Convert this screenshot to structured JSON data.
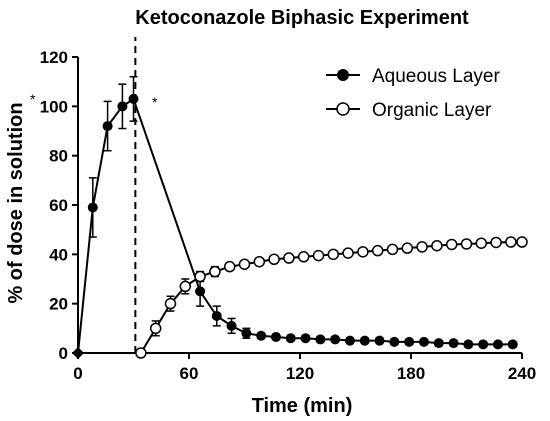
{
  "chart_data": {
    "type": "line",
    "title": "Ketoconazole Biphasic Experiment",
    "xlabel": "Time (min)",
    "ylabel": "% of dose in solution",
    "xlim": [
      0,
      240
    ],
    "ylim": [
      0,
      120
    ],
    "x_ticks": [
      0,
      60,
      120,
      180,
      240
    ],
    "y_ticks": [
      0,
      20,
      40,
      60,
      80,
      100,
      120
    ],
    "grid": false,
    "legend_position": "top-right",
    "vertical_marker_x": 31,
    "annotations": [
      "*",
      "*"
    ],
    "series": [
      {
        "name": "Aqueous Layer",
        "marker": "filled-circle",
        "color": "#000000",
        "x": [
          0,
          8,
          16,
          24,
          30,
          66,
          75,
          83,
          91,
          99,
          107,
          115,
          123,
          131,
          139,
          147,
          155,
          163,
          171,
          179,
          187,
          195,
          203,
          211,
          219,
          227,
          235
        ],
        "y": [
          0,
          59,
          92,
          100,
          103,
          25,
          15,
          11,
          8,
          7,
          6.5,
          6,
          6,
          5.5,
          5.5,
          5,
          5,
          5,
          4.5,
          4.5,
          4.5,
          4,
          4,
          3.5,
          3.5,
          3.5,
          3.5
        ],
        "error": [
          0,
          12,
          10,
          9,
          9,
          6,
          4,
          3,
          2,
          1,
          1,
          1,
          1,
          1,
          1,
          1,
          1,
          1,
          1,
          1,
          1,
          1,
          1,
          1,
          1,
          1,
          1
        ]
      },
      {
        "name": "Organic Layer",
        "marker": "open-circle",
        "color": "#000000",
        "x": [
          0,
          34,
          42,
          50,
          58,
          66,
          74,
          82,
          90,
          98,
          106,
          114,
          122,
          130,
          138,
          146,
          154,
          162,
          170,
          178,
          186,
          194,
          202,
          210,
          218,
          226,
          234,
          240
        ],
        "y": [
          0,
          0,
          10,
          20,
          27,
          31,
          33,
          35,
          36,
          37,
          38,
          38.5,
          39,
          39.5,
          40,
          40.5,
          41,
          41.5,
          42,
          42.5,
          43,
          43.5,
          44,
          44.2,
          44.5,
          44.8,
          45,
          45
        ],
        "error": [
          0,
          0,
          3,
          3,
          3,
          2,
          2,
          1,
          1,
          1,
          1,
          1,
          1,
          1,
          1,
          1,
          1,
          1,
          1,
          1,
          1,
          1,
          1,
          1,
          1,
          1,
          1,
          1
        ]
      }
    ]
  }
}
